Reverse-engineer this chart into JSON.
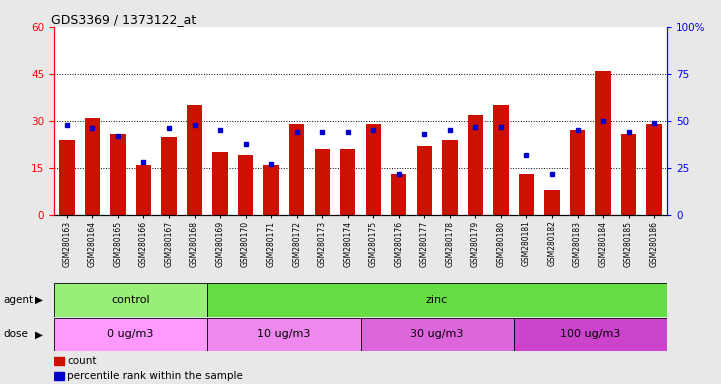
{
  "title": "GDS3369 / 1373122_at",
  "samples": [
    "GSM280163",
    "GSM280164",
    "GSM280165",
    "GSM280166",
    "GSM280167",
    "GSM280168",
    "GSM280169",
    "GSM280170",
    "GSM280171",
    "GSM280172",
    "GSM280173",
    "GSM280174",
    "GSM280175",
    "GSM280176",
    "GSM280177",
    "GSM280178",
    "GSM280179",
    "GSM280180",
    "GSM280181",
    "GSM280182",
    "GSM280183",
    "GSM280184",
    "GSM280185",
    "GSM280186"
  ],
  "counts": [
    24,
    31,
    26,
    16,
    25,
    35,
    20,
    19,
    16,
    29,
    21,
    21,
    29,
    13,
    22,
    24,
    32,
    35,
    13,
    8,
    27,
    46,
    26,
    29
  ],
  "percentile": [
    48,
    46,
    42,
    28,
    46,
    48,
    45,
    38,
    27,
    44,
    44,
    44,
    45,
    22,
    43,
    45,
    47,
    47,
    32,
    22,
    45,
    50,
    44,
    49
  ],
  "bar_color": "#CC1100",
  "dot_color": "#0000CC",
  "left_ylim": [
    0,
    60
  ],
  "right_ylim": [
    0,
    100
  ],
  "left_yticks": [
    0,
    15,
    30,
    45,
    60
  ],
  "right_yticks": [
    0,
    25,
    50,
    75,
    100
  ],
  "right_yticklabels": [
    "0",
    "25",
    "50",
    "75",
    "100%"
  ],
  "agent_groups": [
    {
      "label": "control",
      "start": 0,
      "end": 5,
      "color": "#99EE77"
    },
    {
      "label": "zinc",
      "start": 6,
      "end": 23,
      "color": "#66DD44"
    }
  ],
  "dose_groups": [
    {
      "label": "0 ug/m3",
      "start": 0,
      "end": 5,
      "color": "#FF99FF"
    },
    {
      "label": "10 ug/m3",
      "start": 6,
      "end": 11,
      "color": "#EE88EE"
    },
    {
      "label": "30 ug/m3",
      "start": 12,
      "end": 17,
      "color": "#DD66DD"
    },
    {
      "label": "100 ug/m3",
      "start": 18,
      "end": 23,
      "color": "#CC44CC"
    }
  ],
  "legend_count_label": "count",
  "legend_pct_label": "percentile rank within the sample",
  "bg_color": "#E8E8E8",
  "plot_bg_color": "#FFFFFF",
  "agent_label": "agent",
  "dose_label": "dose"
}
